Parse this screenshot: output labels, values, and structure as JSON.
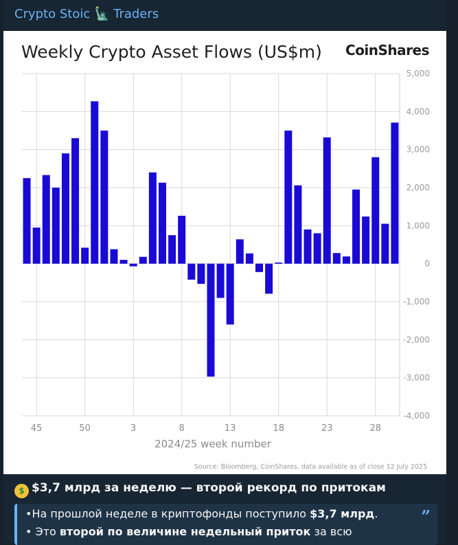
{
  "channel": {
    "name": "Crypto Stoic 🗽 Traders"
  },
  "chart_data": {
    "type": "bar",
    "title": "Weekly Crypto Asset Flows (US$m)",
    "brand": "CoinShares",
    "xlabel": "2024/25 week number",
    "source": "Source: Bloomberg, CoinShares, data available as of close 12 July 2025",
    "ylim": [
      -4000,
      5000
    ],
    "yticks": [
      5000,
      4000,
      3000,
      2000,
      1000,
      0,
      -1000,
      -2000,
      -3000,
      -4000
    ],
    "ytick_labels": [
      "5,000",
      "4,000",
      "3,000",
      "2,000",
      "1,000",
      "0",
      "-1,000",
      "-2,000",
      "-3,000",
      "-4,000"
    ],
    "xtick_labels": [
      "45",
      "50",
      "3",
      "8",
      "13",
      "18",
      "23",
      "28"
    ],
    "grid": true,
    "bar_color": "#1a0ad6",
    "values": [
      2250,
      950,
      2330,
      2000,
      2900,
      3300,
      420,
      4270,
      3500,
      380,
      100,
      -70,
      180,
      2400,
      2130,
      750,
      1260,
      -420,
      -530,
      -2970,
      -900,
      -1600,
      640,
      270,
      -220,
      -790,
      30,
      3500,
      2060,
      900,
      800,
      3320,
      280,
      190,
      1950,
      1240,
      2800,
      1050,
      3710
    ]
  },
  "message": {
    "emoji": "$",
    "headline": "$3,7 млрд за неделю — второй рекорд по притокам",
    "quote": {
      "line1_pre": "•На прошлой неделе в криптофонды поступило ",
      "line1_bold": "$3,7 млрд",
      "line1_post": ".",
      "line2_pre": "• Это ",
      "line2_bold": "второй по величине недельный приток",
      "line2_post": " за всю"
    }
  }
}
